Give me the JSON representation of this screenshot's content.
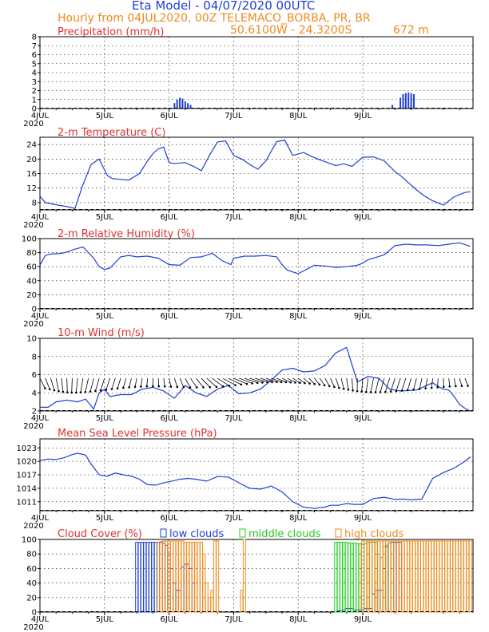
{
  "header": {
    "title": "Eta Model - 04/07/2020 00UTC",
    "subtitle": "Hourly from 04JUL2020, 00Z  TELEMACO_BORBA, PR, BR",
    "coords": "50.6100W - 24.3200S",
    "elevation": "672  m"
  },
  "colors": {
    "line": "#1f3fd6",
    "title_red": "#e03030",
    "orange": "#f08a1c",
    "green": "#22cc22"
  },
  "x_ticks": [
    "4JUL",
    "5JUL",
    "6JUL",
    "7JUL",
    "8JUL",
    "9JUL"
  ],
  "year_label": "2020",
  "chart_data": [
    {
      "type": "bar",
      "title": "Precipitation (mm/h)",
      "ylim": [
        0,
        8
      ],
      "yticks": [
        "0",
        "1",
        "2",
        "3",
        "4",
        "5",
        "6",
        "7",
        "8"
      ],
      "x_hours": [
        47,
        48,
        50,
        51,
        52,
        53,
        54,
        55,
        56,
        131,
        134,
        135,
        136,
        137,
        138,
        139
      ],
      "values": [
        0.1,
        0.1,
        0.6,
        1.0,
        1.2,
        1.1,
        0.8,
        0.6,
        0.4,
        0.4,
        1.2,
        1.6,
        1.7,
        1.8,
        1.7,
        1.6
      ]
    },
    {
      "type": "line",
      "title": "2-m Temperature (C)",
      "ylim": [
        6,
        26
      ],
      "yticks": [
        "8",
        "12",
        "16",
        "20",
        "24"
      ],
      "x_hours": [
        0,
        2,
        6,
        10,
        13,
        16,
        19,
        22,
        25,
        27,
        30,
        33,
        37,
        40,
        42,
        44,
        46,
        48,
        50,
        54,
        57,
        60,
        63,
        66,
        69,
        72,
        75,
        78,
        81,
        84,
        88,
        91,
        94,
        98,
        101,
        104,
        107,
        110,
        113,
        116,
        120,
        124,
        128,
        132,
        134,
        137,
        140,
        143,
        146,
        150,
        154,
        158,
        160
      ],
      "values": [
        9.8,
        8.0,
        7.4,
        6.9,
        6.4,
        13.0,
        18.5,
        20.0,
        15.5,
        14.6,
        14.4,
        14.2,
        16.0,
        19.5,
        21.5,
        22.8,
        23.3,
        19.0,
        18.8,
        19.0,
        18.0,
        16.8,
        21.0,
        24.7,
        25.0,
        21.0,
        20.0,
        18.5,
        17.2,
        19.5,
        24.8,
        25.2,
        21.0,
        21.8,
        20.7,
        19.8,
        19.0,
        18.2,
        18.7,
        18.0,
        20.5,
        20.6,
        19.5,
        16.5,
        15.5,
        13.5,
        11.5,
        9.8,
        8.5,
        7.3,
        9.6,
        10.8,
        11.0
      ]
    },
    {
      "type": "line",
      "title": "2-m Relative Humidity (%)",
      "ylim": [
        0,
        100
      ],
      "yticks": [
        "0",
        "20",
        "40",
        "60",
        "80",
        "100"
      ],
      "x_hours": [
        0,
        2,
        4,
        8,
        11,
        13,
        16,
        20,
        22,
        24,
        26,
        30,
        33,
        36,
        40,
        44,
        48,
        52,
        56,
        60,
        64,
        68,
        71,
        72,
        76,
        80,
        84,
        88,
        90,
        92,
        96,
        99,
        102,
        106,
        110,
        114,
        118,
        120,
        122,
        124,
        128,
        132,
        136,
        140,
        144,
        148,
        152,
        156,
        160
      ],
      "values": [
        62,
        76,
        78,
        79,
        82,
        85,
        88,
        72,
        60,
        56,
        58,
        74,
        76,
        74,
        75,
        72,
        63,
        62,
        73,
        74,
        79,
        68,
        63,
        72,
        75,
        75,
        76,
        74,
        63,
        55,
        50,
        56,
        62,
        61,
        59,
        60,
        62,
        65,
        70,
        72,
        77,
        90,
        92,
        91,
        91,
        90,
        92,
        94,
        89
      ]
    },
    {
      "type": "line",
      "title": "10-m Wind (m/s)",
      "ylim": [
        2,
        10
      ],
      "yticks": [
        "2",
        "4",
        "6",
        "8",
        "10"
      ],
      "x_hours": [
        0,
        3,
        6,
        10,
        14,
        17,
        20,
        22,
        24,
        26,
        30,
        34,
        38,
        42,
        46,
        50,
        54,
        58,
        62,
        66,
        70,
        74,
        78,
        82,
        86,
        90,
        94,
        98,
        102,
        106,
        110,
        114,
        118,
        122,
        126,
        130,
        134,
        140,
        146,
        148,
        150,
        152,
        154,
        156,
        158,
        160
      ],
      "values": [
        2.4,
        2.4,
        3.0,
        3.2,
        3.0,
        3.3,
        2.2,
        4.0,
        4.4,
        3.6,
        3.8,
        3.8,
        4.4,
        4.6,
        4.2,
        3.4,
        4.8,
        4.0,
        3.6,
        4.4,
        4.8,
        3.9,
        4.0,
        4.4,
        5.4,
        6.5,
        6.7,
        6.3,
        6.4,
        7.0,
        8.4,
        9.0,
        5.2,
        5.8,
        5.6,
        4.4,
        4.2,
        4.3,
        5.1,
        4.7,
        4.4,
        4.3,
        3.6,
        2.7,
        2.3,
        2.0
      ]
    },
    {
      "type": "line",
      "title": "Mean Sea Level Pressure (hPa)",
      "ylim": [
        1009,
        1025
      ],
      "yticks": [
        "1011",
        "1014",
        "1017",
        "1020",
        "1023"
      ],
      "x_hours": [
        0,
        3,
        6,
        9,
        12,
        14,
        17,
        19,
        22,
        25,
        28,
        31,
        34,
        37,
        40,
        43,
        46,
        49,
        52,
        55,
        58,
        62,
        66,
        70,
        74,
        78,
        82,
        86,
        90,
        94,
        98,
        102,
        106,
        108,
        111,
        114,
        117,
        120,
        124,
        128,
        132,
        135,
        138,
        142,
        146,
        150,
        154,
        158,
        160
      ],
      "values": [
        1020.2,
        1020.5,
        1020.4,
        1020.8,
        1021.5,
        1021.8,
        1021.4,
        1019.4,
        1017.0,
        1016.7,
        1017.4,
        1017.0,
        1016.7,
        1016.0,
        1014.8,
        1014.7,
        1015.2,
        1015.6,
        1016.0,
        1016.2,
        1016.0,
        1015.6,
        1016.6,
        1016.5,
        1015.2,
        1014.0,
        1013.8,
        1014.5,
        1013.2,
        1011.0,
        1009.8,
        1009.5,
        1009.8,
        1010.2,
        1010.2,
        1010.6,
        1010.4,
        1010.4,
        1011.7,
        1012.0,
        1011.5,
        1011.6,
        1011.4,
        1011.6,
        1016.2,
        1017.5,
        1018.5,
        1020.0,
        1021.0
      ]
    },
    {
      "type": "bar",
      "title": "Cloud Cover (%)",
      "legend": [
        "low clouds",
        "middle clouds",
        "high clouds"
      ],
      "ylim": [
        0,
        100
      ],
      "yticks": [
        "0",
        "20",
        "40",
        "60",
        "80",
        "100"
      ],
      "series": [
        {
          "name": "low clouds",
          "x_hours": [
            36,
            37,
            38,
            39,
            40,
            41,
            42,
            43,
            44,
            45,
            46,
            47,
            48,
            49,
            50,
            51,
            52,
            53,
            54,
            55,
            56,
            57,
            110,
            111,
            112,
            113,
            114,
            115,
            116,
            117,
            118,
            119,
            120,
            121,
            122,
            123,
            124,
            125,
            126,
            127,
            128,
            129,
            130,
            131,
            132,
            133,
            134
          ],
          "values": [
            96,
            96,
            96,
            96,
            96,
            96,
            96,
            96,
            96,
            96,
            95,
            92,
            80,
            60,
            40,
            30,
            30,
            62,
            66,
            66,
            60,
            40,
            0,
            2,
            2,
            3,
            5,
            5,
            5,
            3,
            3,
            3,
            3,
            5,
            5,
            5,
            25,
            30,
            30,
            30,
            60,
            90,
            95,
            96,
            96,
            96,
            96
          ]
        },
        {
          "name": "middle clouds",
          "x_hours": [
            110,
            111,
            112,
            113,
            114,
            115,
            116,
            117,
            118,
            119,
            120,
            121,
            122,
            123,
            124,
            125,
            126,
            127,
            128,
            129,
            130
          ],
          "values": [
            96,
            96,
            96,
            96,
            96,
            95,
            95,
            95,
            94,
            94,
            93,
            94,
            96,
            96,
            96,
            96,
            80,
            75,
            90,
            92,
            95
          ]
        },
        {
          "name": "high clouds",
          "x_hours": [
            44,
            45,
            46,
            47,
            48,
            49,
            50,
            51,
            52,
            53,
            54,
            55,
            56,
            57,
            58,
            59,
            60,
            61,
            62,
            63,
            64,
            65,
            66,
            75,
            76,
            120,
            121,
            122,
            123,
            124,
            125,
            126,
            127,
            128,
            129,
            130,
            131,
            132,
            133,
            134,
            135,
            136,
            137,
            138,
            139,
            140,
            141,
            142,
            143,
            144,
            145,
            146,
            147,
            148,
            149,
            150,
            151,
            152,
            153,
            154,
            155,
            156,
            157,
            158,
            159,
            160
          ],
          "values": [
            96,
            97,
            98,
            98,
            98,
            98,
            98,
            98,
            98,
            98,
            96,
            96,
            96,
            96,
            96,
            96,
            96,
            80,
            40,
            20,
            30,
            98,
            98,
            30,
            100,
            98,
            98,
            98,
            98,
            98,
            98,
            98,
            98,
            98,
            98,
            98,
            98,
            98,
            98,
            98,
            98,
            98,
            98,
            98,
            98,
            98,
            98,
            98,
            98,
            98,
            98,
            98,
            98,
            98,
            98,
            98,
            98,
            98,
            98,
            98,
            98,
            98,
            98,
            98,
            98,
            98
          ]
        }
      ]
    }
  ]
}
